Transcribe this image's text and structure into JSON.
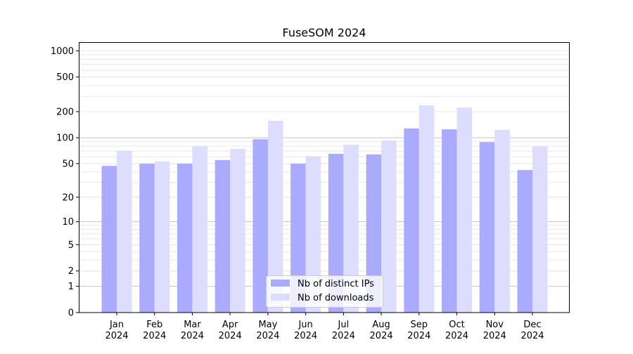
{
  "chart_data": {
    "type": "bar",
    "title": "FuseSOM 2024",
    "xlabel": "",
    "ylabel": "",
    "yscale": "log10(1+y)",
    "ylim": [
      0,
      1250
    ],
    "yticks": [
      0,
      1,
      2,
      5,
      10,
      20,
      50,
      100,
      200,
      500,
      1000
    ],
    "grid": true,
    "legend_position": "lower center",
    "categories": [
      "Jan\n2024",
      "Feb\n2024",
      "Mar\n2024",
      "Apr\n2024",
      "May\n2024",
      "Jun\n2024",
      "Jul\n2024",
      "Aug\n2024",
      "Sep\n2024",
      "Oct\n2024",
      "Nov\n2024",
      "Dec\n2024"
    ],
    "series": [
      {
        "name": "Nb of distinct IPs",
        "color": "#aaaaff",
        "values": [
          47,
          50,
          50,
          55,
          96,
          50,
          65,
          64,
          128,
          125,
          89,
          42
        ]
      },
      {
        "name": "Nb of downloads",
        "color": "#ddddff",
        "values": [
          71,
          53,
          80,
          74,
          157,
          61,
          83,
          93,
          236,
          223,
          123,
          79
        ]
      }
    ]
  }
}
